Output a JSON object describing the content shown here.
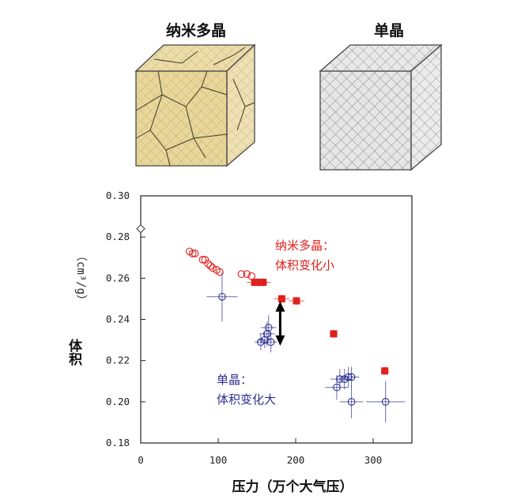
{
  "cubes": {
    "poly_title": "纳米多晶",
    "single_title": "单晶",
    "poly_color": "#e9d79a",
    "single_color": "#e6e6e6"
  },
  "chart_data": {
    "type": "scatter",
    "xlabel": "压力（万个大气压）",
    "ylabel": "体积（cm³/g）",
    "ylabel_main": "体积",
    "ylabel_unit": "（cm³/g）",
    "xlim": [
      0,
      350
    ],
    "ylim": [
      0.18,
      0.3
    ],
    "x_ticks": [
      "0",
      "100",
      "200",
      "300"
    ],
    "x_tick_values": [
      0,
      100,
      200,
      300
    ],
    "y_ticks": [
      "0.30",
      "0.28",
      "0.26",
      "0.24",
      "0.22",
      "0.20",
      "0.18"
    ],
    "y_tick_values": [
      0.3,
      0.28,
      0.26,
      0.24,
      0.22,
      0.2,
      0.18
    ],
    "reference_point": {
      "x": 0,
      "y": 0.284,
      "marker": "diamond-open"
    },
    "annotations": {
      "poly_line1": "纳米多晶：",
      "poly_line2": "体积变化小",
      "single_line1": "单晶：",
      "single_line2": "体积变化大"
    },
    "series": [
      {
        "color": "#e0201c",
        "marker": "circle-open",
        "points": [
          {
            "x": 63,
            "y": 0.273
          },
          {
            "x": 67,
            "y": 0.272
          },
          {
            "x": 70,
            "y": 0.272
          },
          {
            "x": 80,
            "y": 0.269
          },
          {
            "x": 83,
            "y": 0.269
          },
          {
            "x": 87,
            "y": 0.267
          },
          {
            "x": 90,
            "y": 0.266
          },
          {
            "x": 93,
            "y": 0.265
          },
          {
            "x": 98,
            "y": 0.264
          },
          {
            "x": 102,
            "y": 0.263
          },
          {
            "x": 130,
            "y": 0.262
          },
          {
            "x": 137,
            "y": 0.262
          },
          {
            "x": 143,
            "y": 0.261
          }
        ]
      },
      {
        "color": "#e0201c",
        "marker": "square-filled",
        "points": [
          {
            "x": 147,
            "y": 0.258,
            "xerr": 10,
            "yerr": 0.002
          },
          {
            "x": 153,
            "y": 0.258,
            "xerr": 10,
            "yerr": 0.002
          },
          {
            "x": 158,
            "y": 0.258,
            "xerr": 10,
            "yerr": 0.002
          },
          {
            "x": 182,
            "y": 0.25,
            "xerr": 10,
            "yerr": 0.002
          },
          {
            "x": 201,
            "y": 0.249,
            "xerr": 10,
            "yerr": 0.002
          },
          {
            "x": 249,
            "y": 0.233,
            "xerr": 5,
            "yerr": 0.002
          },
          {
            "x": 315,
            "y": 0.215,
            "xerr": 5,
            "yerr": 0.002
          }
        ]
      },
      {
        "color": "#2d2f8f",
        "marker": "circle-open",
        "points": [
          {
            "x": 105,
            "y": 0.251,
            "xerr": 20,
            "yerr": 0.012
          },
          {
            "x": 155,
            "y": 0.229,
            "xerr": 8,
            "yerr": 0.004
          },
          {
            "x": 160,
            "y": 0.23,
            "xerr": 8,
            "yerr": 0.004
          },
          {
            "x": 163,
            "y": 0.233,
            "xerr": 10,
            "yerr": 0.006
          },
          {
            "x": 165,
            "y": 0.236,
            "xerr": 10,
            "yerr": 0.006
          },
          {
            "x": 168,
            "y": 0.229,
            "xerr": 8,
            "yerr": 0.005
          },
          {
            "x": 253,
            "y": 0.207,
            "xerr": 15,
            "yerr": 0.006
          },
          {
            "x": 257,
            "y": 0.211,
            "xerr": 12,
            "yerr": 0.005
          },
          {
            "x": 263,
            "y": 0.211,
            "xerr": 10,
            "yerr": 0.005
          },
          {
            "x": 268,
            "y": 0.212,
            "xerr": 10,
            "yerr": 0.005
          },
          {
            "x": 272,
            "y": 0.212,
            "xerr": 10,
            "yerr": 0.005
          },
          {
            "x": 272,
            "y": 0.2,
            "xerr": 15,
            "yerr": 0.008
          },
          {
            "x": 316,
            "y": 0.2,
            "xerr": 25,
            "yerr": 0.01
          }
        ]
      }
    ],
    "arrow": {
      "x": 180,
      "y_from": 0.248,
      "y_to": 0.228,
      "direction": "double"
    }
  }
}
